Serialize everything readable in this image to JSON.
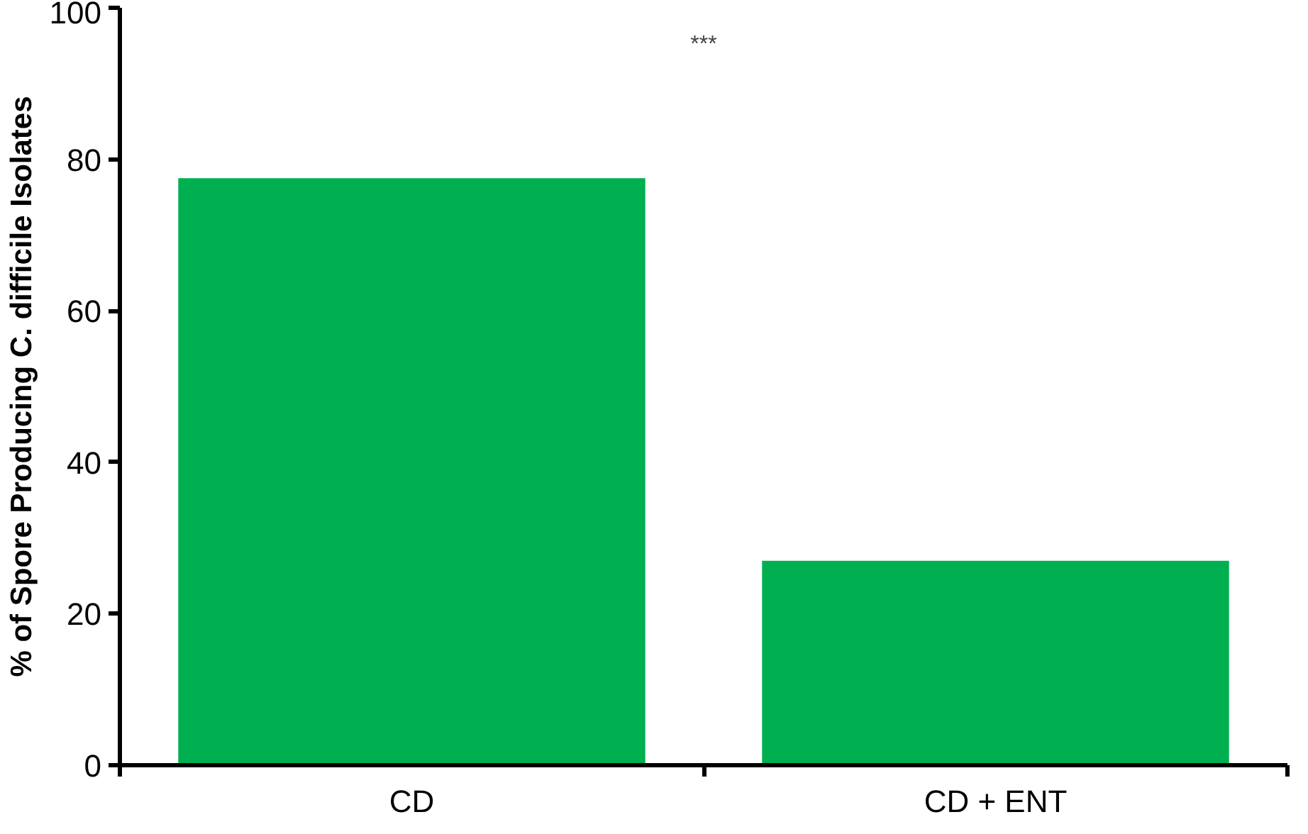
{
  "chart_data": {
    "type": "bar",
    "ylabel": "% of Spore Producing C. difficile Isolates",
    "categories": [
      "CD",
      "CD + ENT"
    ],
    "values": [
      77.5,
      27.0
    ],
    "color": "#00b050",
    "ylim": [
      0,
      100
    ],
    "yticks": [
      0,
      20,
      40,
      60,
      80,
      100
    ],
    "grid": false,
    "annotations": [
      "***"
    ]
  }
}
